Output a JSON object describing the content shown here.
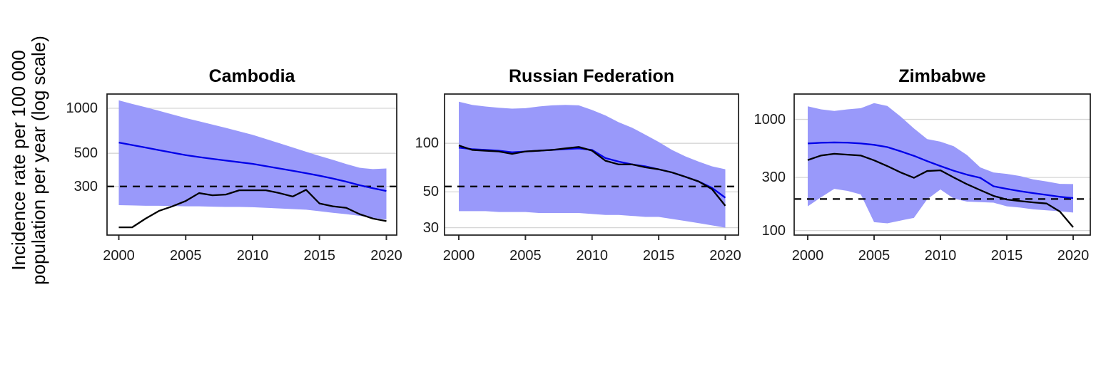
{
  "figure": {
    "y_axis_label_line1": "Incidence rate per 100 000",
    "y_axis_label_line2": "population per year (log scale)",
    "colors": {
      "ribbon": "#9999FA",
      "estimate_line": "#0000E8",
      "notifications_line": "#000000",
      "threshold_line": "#000000",
      "gridline": "#D6D6D6",
      "panel_border": "#1A1A1A",
      "tick_mark": "#333333",
      "text": "#000000"
    }
  },
  "chart_data": [
    {
      "type": "line",
      "title": "Cambodia",
      "y_scale": "log10",
      "ylabel": "Incidence rate per 100 000 population per year (log scale)",
      "x": [
        2000,
        2001,
        2002,
        2003,
        2004,
        2005,
        2006,
        2007,
        2008,
        2009,
        2010,
        2011,
        2012,
        2013,
        2014,
        2015,
        2016,
        2017,
        2018,
        2019,
        2020
      ],
      "x_ticks": [
        2000,
        2005,
        2010,
        2015,
        2020
      ],
      "y_ticks": [
        1000,
        500,
        300
      ],
      "ylim": [
        142,
        1245
      ],
      "threshold": 300,
      "grid": true,
      "legend": "none",
      "series": [
        {
          "name": "estimate",
          "color": "#0000E8",
          "values": [
            590,
            568,
            546,
            525,
            505,
            486,
            472,
            459,
            447,
            436,
            425,
            410,
            396,
            382,
            368,
            354,
            339,
            323,
            306,
            292,
            280
          ]
        },
        {
          "name": "notifications",
          "color": "#000000",
          "values": [
            160,
            160,
            183,
            206,
            221,
            240,
            271,
            262,
            265,
            283,
            283,
            283,
            271,
            257,
            285,
            231,
            221,
            216,
            196,
            183,
            176
          ]
        }
      ],
      "ribbon": {
        "name": "uncertainty-interval",
        "color": "#9999FA",
        "upper": [
          1130,
          1070,
          1016,
          962,
          910,
          860,
          818,
          778,
          740,
          701,
          665,
          623,
          584,
          547,
          512,
          480,
          452,
          424,
          400,
          392,
          396
        ],
        "lower": [
          225,
          224,
          223,
          223,
          222,
          221,
          221,
          220,
          219,
          219,
          218,
          216,
          214,
          212,
          210,
          205,
          200,
          196,
          191,
          185,
          180
        ]
      }
    },
    {
      "type": "line",
      "title": "Russian Federation",
      "y_scale": "log10",
      "ylabel": "Incidence rate per 100 000 population per year (log scale)",
      "x": [
        2000,
        2001,
        2002,
        2003,
        2004,
        2005,
        2006,
        2007,
        2008,
        2009,
        2010,
        2011,
        2012,
        2013,
        2014,
        2015,
        2016,
        2017,
        2018,
        2019,
        2020
      ],
      "x_ticks": [
        2000,
        2005,
        2010,
        2015,
        2020
      ],
      "y_ticks": [
        100,
        50,
        30
      ],
      "ylim": [
        27,
        202
      ],
      "threshold": 54,
      "grid": true,
      "legend": "none",
      "series": [
        {
          "name": "estimate",
          "color": "#0000E8",
          "values": [
            94,
            92,
            91,
            90,
            88,
            89,
            90,
            91,
            92,
            93,
            91,
            81,
            77,
            74,
            72,
            69,
            66,
            62,
            58,
            53,
            46
          ]
        },
        {
          "name": "notifications",
          "color": "#000000",
          "values": [
            97,
            91,
            90,
            89,
            86,
            89,
            90,
            91,
            93,
            95,
            90,
            78,
            74,
            74,
            71,
            69,
            66,
            62,
            58,
            52,
            41
          ]
        }
      ],
      "ribbon": {
        "name": "uncertainty-interval",
        "color": "#9999FA",
        "upper": [
          181,
          173,
          169,
          166,
          164,
          165,
          169,
          172,
          173,
          172,
          161,
          149,
          135,
          125,
          113,
          102,
          91,
          83,
          77,
          72,
          69
        ],
        "lower": [
          38,
          38,
          38,
          37.5,
          37.5,
          37.5,
          37,
          37,
          37,
          37,
          36.5,
          36,
          36,
          35.5,
          35,
          35,
          34,
          33,
          32,
          31,
          30
        ]
      }
    },
    {
      "type": "line",
      "title": "Zimbabwe",
      "y_scale": "log10",
      "ylabel": "Incidence rate per 100 000 population per year (log scale)",
      "x": [
        2000,
        2001,
        2002,
        2003,
        2004,
        2005,
        2006,
        2007,
        2008,
        2009,
        2010,
        2011,
        2012,
        2013,
        2014,
        2015,
        2016,
        2017,
        2018,
        2019,
        2020
      ],
      "x_ticks": [
        2000,
        2005,
        2010,
        2015,
        2020
      ],
      "y_ticks": [
        1000,
        300,
        100
      ],
      "ylim": [
        91,
        1690
      ],
      "threshold": 192,
      "grid": true,
      "legend": "none",
      "series": [
        {
          "name": "estimate",
          "color": "#0000E8",
          "values": [
            607,
            616,
            620,
            617,
            607,
            590,
            563,
            516,
            470,
            421,
            380,
            345,
            318,
            298,
            250,
            237,
            226,
            217,
            209,
            201,
            196
          ]
        },
        {
          "name": "notifications",
          "color": "#000000",
          "values": [
            430,
            473,
            490,
            481,
            473,
            428,
            380,
            333,
            298,
            343,
            348,
            300,
            261,
            231,
            205,
            190,
            184,
            179,
            175,
            148,
            107
          ]
        }
      ],
      "ribbon": {
        "name": "uncertainty-interval",
        "color": "#9999FA",
        "upper": [
          1310,
          1230,
          1190,
          1230,
          1260,
          1400,
          1320,
          1060,
          830,
          665,
          630,
          573,
          478,
          370,
          333,
          323,
          309,
          288,
          276,
          263,
          262
        ],
        "lower": [
          165,
          199,
          237,
          227,
          211,
          119,
          116,
          123,
          130,
          191,
          234,
          194,
          182,
          180,
          178,
          165,
          161,
          155,
          152,
          149,
          145
        ]
      }
    }
  ]
}
